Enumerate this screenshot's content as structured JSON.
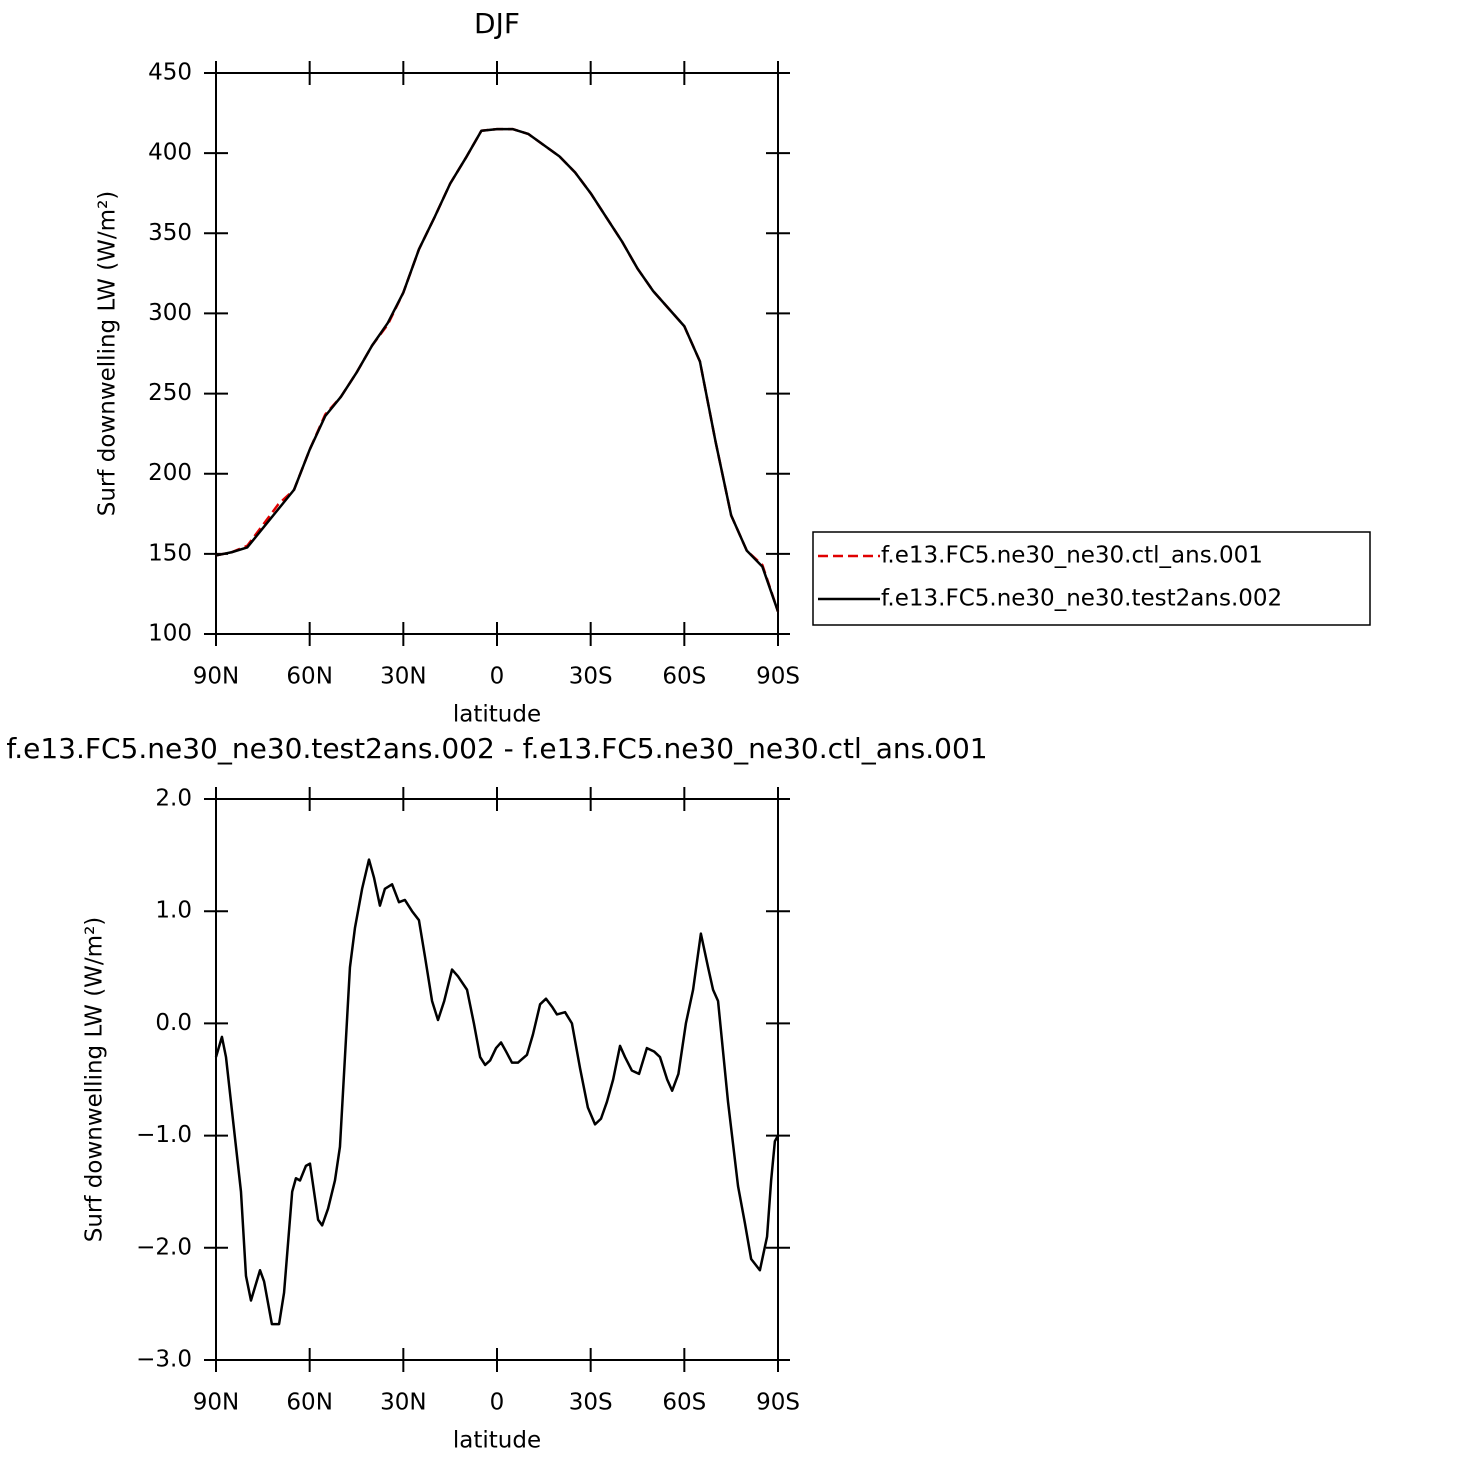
{
  "chart_data": [
    {
      "type": "line",
      "title": "DJF",
      "xlabel": "latitude",
      "ylabel": "Surf  downwelling LW (W/m²)",
      "xlim": [
        90,
        -90
      ],
      "ylim": [
        100,
        450
      ],
      "xticks": [
        {
          "value": 90,
          "label": "90N"
        },
        {
          "value": 60,
          "label": "60N"
        },
        {
          "value": 30,
          "label": "30N"
        },
        0,
        {
          "value": -30,
          "label": "30S"
        },
        {
          "value": -60,
          "label": "60S"
        },
        {
          "value": -90,
          "label": "90S"
        }
      ],
      "yticks": [
        100,
        150,
        200,
        250,
        300,
        350,
        400,
        450
      ],
      "legend": "right",
      "x": [
        90,
        85,
        80,
        75,
        70,
        65,
        60,
        55,
        50,
        45,
        40,
        35,
        30,
        25,
        20,
        15,
        10,
        5,
        0,
        -5,
        -10,
        -15,
        -20,
        -25,
        -30,
        -35,
        -40,
        -45,
        -50,
        -55,
        -60,
        -65,
        -70,
        -75,
        -80,
        -85,
        -90
      ],
      "series": [
        {
          "name": "f.e13.FC5.ne30_ne30.ctl_ans.001",
          "color": "#e00000",
          "dash": true,
          "values": [
            149,
            151,
            155,
            168,
            181,
            190,
            215,
            237,
            248,
            263,
            280,
            293,
            313,
            340,
            360,
            381,
            397,
            414,
            415,
            415,
            412,
            405,
            398,
            388,
            375,
            360,
            345,
            328,
            314,
            303,
            292,
            270,
            220,
            174,
            152,
            143,
            114
          ]
        },
        {
          "name": "f.e13.FC5.ne30_ne30.test2ans.002",
          "color": "#000000",
          "dash": false,
          "values": [
            149,
            151,
            154,
            166,
            178,
            190,
            215,
            236,
            248,
            263,
            280,
            294,
            313,
            340,
            360,
            381,
            397,
            414,
            415,
            415,
            412,
            405,
            398,
            388,
            375,
            360,
            345,
            328,
            314,
            303,
            292,
            270,
            220,
            174,
            152,
            142,
            114
          ]
        }
      ]
    },
    {
      "type": "line",
      "title": "f.e13.FC5.ne30_ne30.test2ans.002 - f.e13.FC5.ne30_ne30.ctl_ans.001",
      "xlabel": "latitude",
      "ylabel": "Surf  downwelling LW (W/m²)",
      "xlim": [
        90,
        -90
      ],
      "ylim": [
        -3,
        2
      ],
      "xticks": [
        {
          "value": 90,
          "label": "90N"
        },
        {
          "value": 60,
          "label": "60N"
        },
        {
          "value": 30,
          "label": "30N"
        },
        0,
        {
          "value": -30,
          "label": "30S"
        },
        {
          "value": -60,
          "label": "60S"
        },
        {
          "value": -90,
          "label": "90S"
        }
      ],
      "yticks": [
        {
          "value": -3,
          "label": "−3.0"
        },
        {
          "value": -2,
          "label": "−2.0"
        },
        {
          "value": -1,
          "label": "−1.0"
        },
        {
          "value": 0,
          "label": "0.0"
        },
        {
          "value": 1,
          "label": "1.0"
        },
        {
          "value": 2,
          "label": "2.0"
        }
      ],
      "x": [
        90,
        88.1,
        86.8,
        83.6,
        82,
        80.4,
        78.8,
        75.9,
        74.6,
        72.1,
        69.8,
        68.2,
        65.6,
        64.4,
        63.1,
        61.2,
        59.9,
        57.3,
        56,
        54.1,
        51.9,
        50.3,
        48.7,
        47.1,
        45.5,
        43.2,
        41,
        39.4,
        37.5,
        35.9,
        33.6,
        31.4,
        29.5,
        27.2,
        25,
        23.1,
        20.8,
        18.9,
        16.9,
        14.4,
        12.5,
        9.6,
        7.4,
        5.4,
        3.8,
        2.2,
        0.3,
        -1.3,
        -2.9,
        -4.8,
        -6.7,
        -9.6,
        -11.5,
        -13.8,
        -15.7,
        -17.6,
        -19.2,
        -21.8,
        -24,
        -26.6,
        -29.1,
        -31.4,
        -33.3,
        -35.2,
        -37.2,
        -39.4,
        -41,
        -43.2,
        -45.5,
        -48,
        -50.3,
        -52.2,
        -54.5,
        -56.1,
        -58.1,
        -60.5,
        -62.8,
        -65.3,
        -67.6,
        -69.2,
        -70.8,
        -74,
        -77.2,
        -79.4,
        -81.4,
        -84.2,
        -86.5,
        -87.8,
        -89,
        -90
      ],
      "series": [
        {
          "color": "#000000",
          "dash": false,
          "values": [
            -0.3,
            -0.12,
            -0.3,
            -1.1,
            -1.5,
            -2.25,
            -2.47,
            -2.2,
            -2.3,
            -2.68,
            -2.68,
            -2.4,
            -1.5,
            -1.38,
            -1.4,
            -1.27,
            -1.25,
            -1.75,
            -1.8,
            -1.65,
            -1.4,
            -1.1,
            -0.3,
            0.5,
            0.85,
            1.2,
            1.46,
            1.3,
            1.05,
            1.2,
            1.24,
            1.08,
            1.1,
            1.0,
            0.92,
            0.6,
            0.2,
            0.03,
            0.2,
            0.48,
            0.42,
            0.3,
            0.0,
            -0.3,
            -0.37,
            -0.33,
            -0.22,
            -0.17,
            -0.25,
            -0.35,
            -0.35,
            -0.28,
            -0.1,
            0.17,
            0.22,
            0.15,
            0.08,
            0.1,
            0.0,
            -0.4,
            -0.75,
            -0.9,
            -0.85,
            -0.7,
            -0.5,
            -0.2,
            -0.3,
            -0.42,
            -0.45,
            -0.22,
            -0.25,
            -0.3,
            -0.5,
            -0.6,
            -0.45,
            0.0,
            0.3,
            0.8,
            0.5,
            0.3,
            0.2,
            -0.7,
            -1.45,
            -1.78,
            -2.1,
            -2.2,
            -1.9,
            -1.4,
            -1.05,
            -1.0
          ]
        }
      ]
    }
  ]
}
